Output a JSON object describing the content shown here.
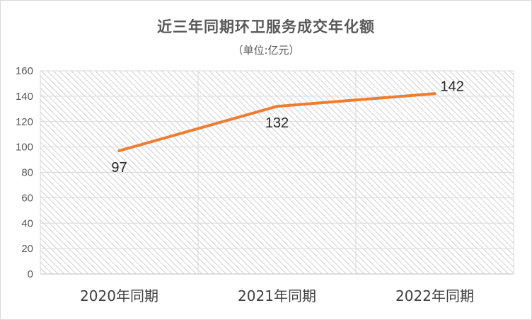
{
  "chart_data": {
    "type": "line",
    "title": "近三年同期环卫服务成交年化额",
    "subtitle": "（单位:亿元）",
    "categories": [
      "2020年同期",
      "2021年同期",
      "2022年同期"
    ],
    "series": [
      {
        "values": [
          97,
          132,
          142
        ],
        "color": "#ed7d31"
      }
    ],
    "ylim": [
      0,
      160
    ],
    "yticks": [
      "0",
      "20",
      "40",
      "60",
      "80",
      "100",
      "120",
      "140",
      "160"
    ],
    "xlabel": "",
    "ylabel": "",
    "grid": true,
    "legend": "none",
    "plot_background": "hatched-gray"
  }
}
